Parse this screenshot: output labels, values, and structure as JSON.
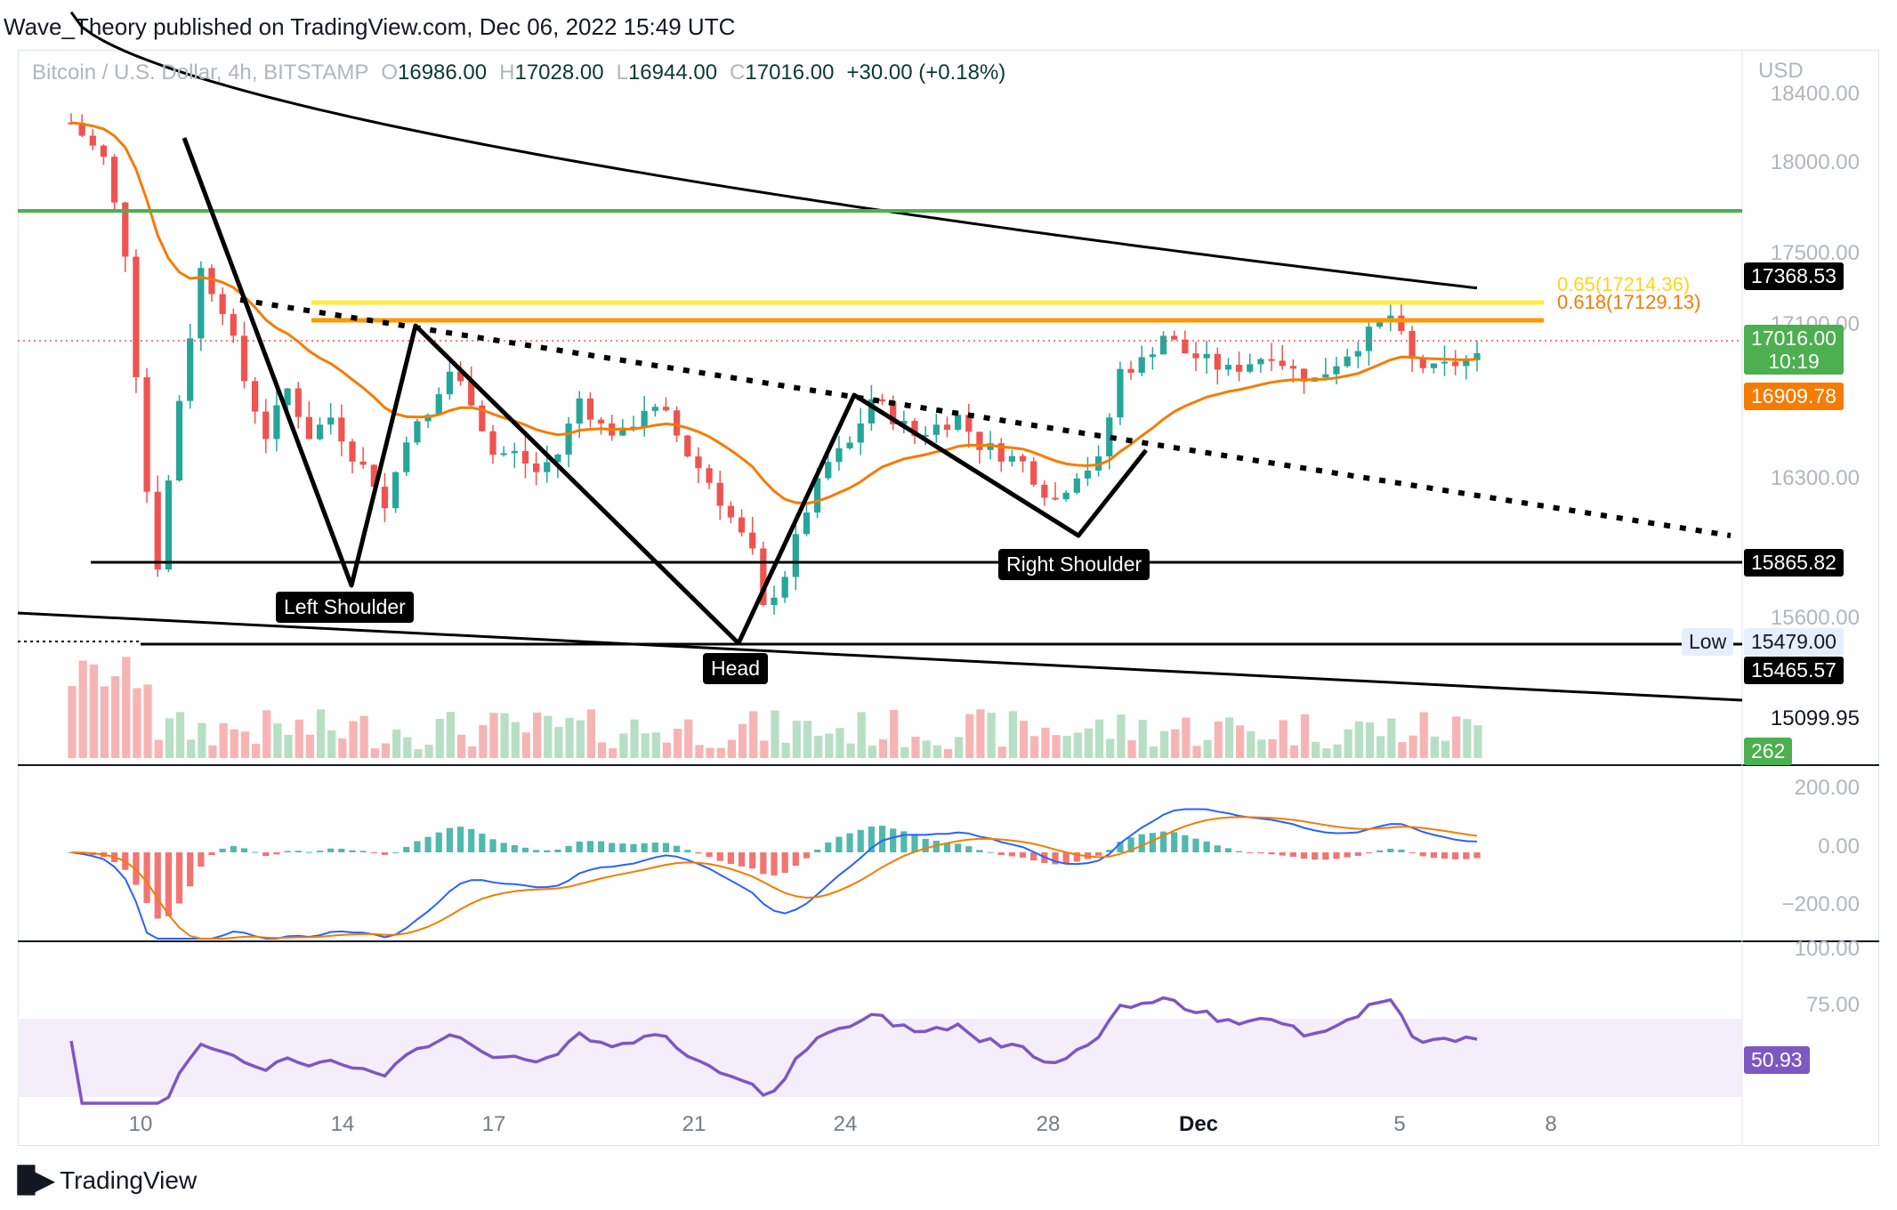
{
  "header": {
    "publisher": "Wave_Theory published on TradingView.com, Dec 06, 2022 15:49 UTC"
  },
  "legend": {
    "symbol": "Bitcoin / U.S. Dollar, 4h, BITSTAMP",
    "open_label": "O",
    "open": "16986.00",
    "high_label": "H",
    "high": "17028.00",
    "low_label": "L",
    "low": "16944.00",
    "close_label": "C",
    "close": "17016.00",
    "change": "+30.00 (+0.18%)"
  },
  "axis": {
    "currency": "USD",
    "y_ticks": [
      "18400.00",
      "18000.00",
      "17500.00",
      "17100.00",
      "16300.00",
      "15600.00",
      "15099.95"
    ],
    "x_ticks": [
      "10",
      "14",
      "17",
      "21",
      "24",
      "28",
      "Dec",
      "5",
      "8"
    ]
  },
  "price_labels": {
    "ma200": "17368.53",
    "last_price": "17016.00",
    "countdown": "10:19",
    "ma50": "16909.78",
    "support": "15865.82",
    "low_label": "Low",
    "low_value": "15479.00",
    "wedge_low": "15465.57",
    "volume": "262"
  },
  "fib_labels": {
    "f065": "0.65(17214.36)",
    "f0618": "0.618(17129.13)"
  },
  "annotations": {
    "left_shoulder": "Left Shoulder",
    "head": "Head",
    "right_shoulder": "Right Shoulder"
  },
  "macd_axis": [
    "200.00",
    "0.00",
    "−200.00"
  ],
  "rsi_axis": [
    "100.00",
    "75.00"
  ],
  "rsi_value": "50.93",
  "footer": {
    "brand": "TradingView"
  },
  "colors": {
    "bull": "#26a69a",
    "bear": "#ef5350",
    "ma50": "#f57c00",
    "ma200": "#000000",
    "resistance": "#4caf50",
    "fib065": "#ffeb3b",
    "fib0618": "#ff9800",
    "rsi": "#7e57c2",
    "macd": "#2962ff"
  },
  "chart_data": {
    "type": "candlestick",
    "title": "Bitcoin / U.S. Dollar, 4h, BITSTAMP",
    "y_unit": "USD",
    "ylim": [
      15000,
      18500
    ],
    "x_ticks": [
      "10",
      "14",
      "17",
      "21",
      "24",
      "28",
      "Dec",
      "5",
      "8"
    ],
    "levels": [
      {
        "value": 17368.53
      },
      {
        "value": 17214.36,
        "label": "0.65(17214.36)"
      },
      {
        "value": 17129.13,
        "label": "0.618(17129.13)"
      },
      {
        "value": 15865.82
      },
      {
        "value": 15479.0,
        "label": "Low"
      },
      {
        "value": 15465.57
      }
    ],
    "last": {
      "open": 16986.0,
      "high": 17028.0,
      "low": 16944.0,
      "close": 17016.0,
      "change": "+30.00 (+0.18%)"
    },
    "ma50_last": 16909.78,
    "ma200_last": 17368.53,
    "volume_last": 262,
    "rsi_last": 50.93,
    "pattern_points": [
      "Left Shoulder",
      "Head",
      "Right Shoulder"
    ],
    "close_path": [
      [
        0,
        18300
      ],
      [
        3,
        18100
      ],
      [
        5,
        17600
      ],
      [
        7,
        16300
      ],
      [
        8,
        15900
      ],
      [
        10,
        16800
      ],
      [
        12,
        17500
      ],
      [
        14,
        17300
      ],
      [
        16,
        16900
      ],
      [
        18,
        16600
      ],
      [
        20,
        16850
      ],
      [
        22,
        16600
      ],
      [
        24,
        16700
      ],
      [
        26,
        16500
      ],
      [
        28,
        16350
      ],
      [
        29,
        16200
      ],
      [
        31,
        16600
      ],
      [
        33,
        16700
      ],
      [
        35,
        16950
      ],
      [
        37,
        16800
      ],
      [
        39,
        16500
      ],
      [
        41,
        16500
      ],
      [
        43,
        16400
      ],
      [
        45,
        16500
      ],
      [
        47,
        16800
      ],
      [
        49,
        16650
      ],
      [
        51,
        16600
      ],
      [
        53,
        16750
      ],
      [
        55,
        16700
      ],
      [
        57,
        16500
      ],
      [
        59,
        16350
      ],
      [
        61,
        16150
      ],
      [
        63,
        15950
      ],
      [
        64,
        15650
      ],
      [
        66,
        15850
      ],
      [
        68,
        16200
      ],
      [
        70,
        16450
      ],
      [
        72,
        16550
      ],
      [
        74,
        16800
      ],
      [
        76,
        16700
      ],
      [
        78,
        16600
      ],
      [
        80,
        16650
      ],
      [
        82,
        16700
      ],
      [
        84,
        16550
      ],
      [
        86,
        16500
      ],
      [
        88,
        16450
      ],
      [
        90,
        16300
      ],
      [
        91,
        16250
      ],
      [
        93,
        16400
      ],
      [
        95,
        16450
      ],
      [
        97,
        16950
      ],
      [
        99,
        17000
      ],
      [
        101,
        17150
      ],
      [
        103,
        17050
      ],
      [
        105,
        17000
      ],
      [
        107,
        16950
      ],
      [
        109,
        17000
      ],
      [
        111,
        17050
      ],
      [
        113,
        16950
      ],
      [
        115,
        16900
      ],
      [
        117,
        17000
      ],
      [
        119,
        17100
      ],
      [
        121,
        17200
      ],
      [
        122,
        17250
      ],
      [
        124,
        17000
      ],
      [
        126,
        16950
      ],
      [
        128,
        16990
      ],
      [
        130,
        17016
      ]
    ]
  }
}
